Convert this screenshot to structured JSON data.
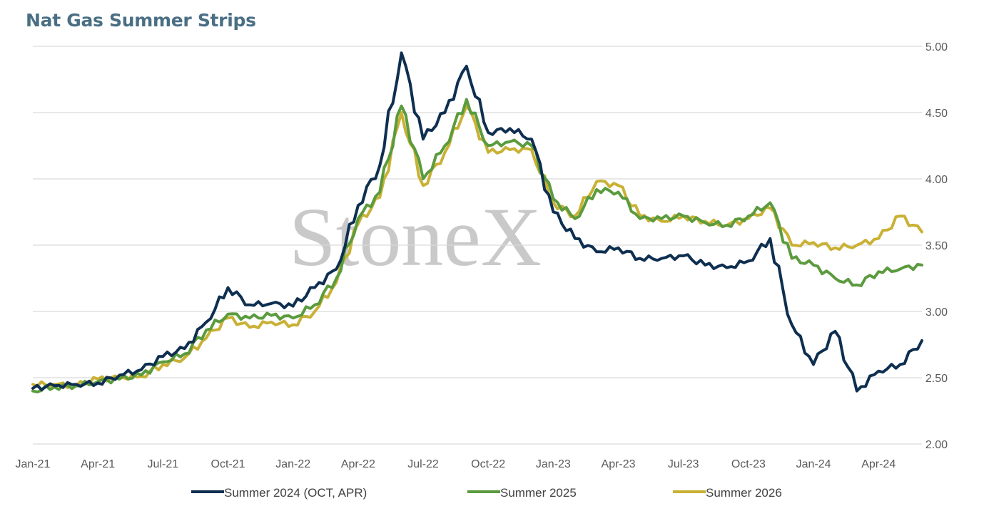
{
  "chart_data": {
    "type": "line",
    "title": "Nat Gas Summer Strips",
    "watermark": "StoneX",
    "x_tick_labels": [
      "Jan-21",
      "Apr-21",
      "Jul-21",
      "Oct-21",
      "Jan-22",
      "Apr-22",
      "Jul-22",
      "Oct-22",
      "Jan-23",
      "Apr-23",
      "Jul-23",
      "Oct-23",
      "Jan-24",
      "Apr-24"
    ],
    "x_range": [
      "2021-01",
      "2024-06"
    ],
    "y_ticks": [
      "2.00",
      "2.50",
      "3.00",
      "3.50",
      "4.00",
      "4.50",
      "5.00"
    ],
    "ylim": [
      2.0,
      5.0
    ],
    "y_axis_side": "right",
    "grid": true,
    "legend_position": "bottom",
    "x_dates": [
      "2021-01",
      "2021-02",
      "2021-03",
      "2021-04",
      "2021-05",
      "2021-06",
      "2021-07",
      "2021-08",
      "2021-09",
      "2021-10",
      "2021-11",
      "2021-12",
      "2022-01",
      "2022-02",
      "2022-03",
      "2022-04",
      "2022-05",
      "2022-06",
      "2022-07",
      "2022-08",
      "2022-09",
      "2022-10",
      "2022-11",
      "2022-12",
      "2023-01",
      "2023-02",
      "2023-03",
      "2023-04",
      "2023-05",
      "2023-06",
      "2023-07",
      "2023-08",
      "2023-09",
      "2023-10",
      "2023-11",
      "2023-12",
      "2024-01",
      "2024-02",
      "2024-03",
      "2024-04",
      "2024-05",
      "2024-06"
    ],
    "series": [
      {
        "name": "Summer 2024 (OCT, APR)",
        "color": "#0e2f50",
        "values": [
          2.42,
          2.44,
          2.45,
          2.46,
          2.52,
          2.56,
          2.66,
          2.72,
          2.92,
          3.18,
          3.05,
          3.06,
          3.04,
          3.18,
          3.32,
          3.8,
          4.1,
          4.95,
          4.3,
          4.5,
          4.85,
          4.35,
          4.38,
          4.3,
          3.75,
          3.55,
          3.45,
          3.48,
          3.4,
          3.4,
          3.42,
          3.35,
          3.33,
          3.38,
          3.55,
          2.9,
          2.6,
          2.85,
          2.4,
          2.55,
          2.6,
          2.78
        ]
      },
      {
        "name": "Summer 2025",
        "color": "#5b9b3e",
        "values": [
          2.4,
          2.43,
          2.44,
          2.47,
          2.49,
          2.52,
          2.62,
          2.68,
          2.86,
          2.98,
          2.95,
          2.97,
          2.95,
          3.05,
          3.25,
          3.7,
          3.9,
          4.55,
          4.0,
          4.25,
          4.6,
          4.25,
          4.28,
          4.25,
          3.85,
          3.7,
          3.92,
          3.9,
          3.7,
          3.7,
          3.72,
          3.67,
          3.65,
          3.72,
          3.82,
          3.4,
          3.35,
          3.25,
          3.2,
          3.3,
          3.32,
          3.35
        ]
      },
      {
        "name": "Summer 2026",
        "color": "#c9b135",
        "values": [
          2.45,
          2.45,
          2.44,
          2.49,
          2.5,
          2.51,
          2.6,
          2.65,
          2.8,
          2.95,
          2.88,
          2.92,
          2.9,
          3.0,
          3.22,
          3.66,
          3.86,
          4.5,
          3.95,
          4.2,
          4.55,
          4.2,
          4.22,
          4.22,
          3.82,
          3.72,
          3.98,
          3.95,
          3.72,
          3.68,
          3.72,
          3.68,
          3.65,
          3.7,
          3.78,
          3.5,
          3.52,
          3.48,
          3.5,
          3.55,
          3.72,
          3.6
        ]
      }
    ]
  }
}
